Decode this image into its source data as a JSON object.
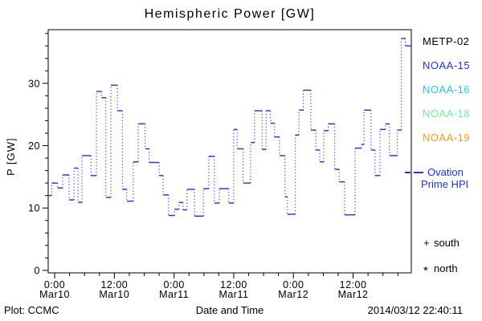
{
  "title": "Hemispheric Power [GW]",
  "legend": {
    "satellites": [
      {
        "label": "METP-02",
        "color": "#000000"
      },
      {
        "label": "NOAA-15",
        "color": "#2233cc"
      },
      {
        "label": "NOAA-16",
        "color": "#33bbee"
      },
      {
        "label": "NOAA-18",
        "color": "#7ce696"
      },
      {
        "label": "NOAA-19",
        "color": "#ee9922"
      }
    ],
    "line_sample": {
      "label_line1": "Ovation",
      "label_line2": "Prime HPI",
      "color": "#2233cc"
    },
    "markers": [
      {
        "symbol": "+",
        "label": "south"
      },
      {
        "symbol": "*",
        "label": "north"
      }
    ]
  },
  "footer": {
    "left": "Plot: CCMC",
    "right": "2014/03/12 22:40:11"
  },
  "chart_data": {
    "type": "line",
    "style": "step plot: solid horizontal segments joined by dotted vertical connectors",
    "series_name": "Ovation Prime HPI",
    "line_color": "#2233cc",
    "title": "Hemispheric Power [GW]",
    "xlabel": "Date and Time",
    "ylabel": "P [GW]",
    "xlim_hours_from_mar10": [
      -1.3,
      71.7
    ],
    "ylim": [
      -0.4,
      38.6
    ],
    "y_major_ticks": [
      0,
      10,
      20,
      30
    ],
    "y_minor_step": 2,
    "x_major_ticks": [
      {
        "t": 0,
        "time": "0:00",
        "date": "Mar10"
      },
      {
        "t": 12,
        "time": "12:00",
        "date": "Mar10"
      },
      {
        "t": 24,
        "time": "0:00",
        "date": "Mar11"
      },
      {
        "t": 36,
        "time": "12:00",
        "date": "Mar11"
      },
      {
        "t": 48,
        "time": "0:00",
        "date": "Mar12"
      },
      {
        "t": 60,
        "time": "12:00",
        "date": "Mar12"
      }
    ],
    "x_minor_step_hours": 3,
    "t_end": 71.7,
    "points": [
      [
        -1.3,
        12.0
      ],
      [
        -0.6,
        14.0
      ],
      [
        0.6,
        13.2
      ],
      [
        1.6,
        15.3
      ],
      [
        2.9,
        11.3
      ],
      [
        3.9,
        16.4
      ],
      [
        4.7,
        10.9
      ],
      [
        5.5,
        18.4
      ],
      [
        7.3,
        15.2
      ],
      [
        8.4,
        28.7
      ],
      [
        9.4,
        27.7
      ],
      [
        10.3,
        11.7
      ],
      [
        11.3,
        29.7
      ],
      [
        12.6,
        25.6
      ],
      [
        13.6,
        13.0
      ],
      [
        14.5,
        11.1
      ],
      [
        15.8,
        17.4
      ],
      [
        16.8,
        23.5
      ],
      [
        18.2,
        19.5
      ],
      [
        19.0,
        17.3
      ],
      [
        21.0,
        15.2
      ],
      [
        21.8,
        12.1
      ],
      [
        22.9,
        8.8
      ],
      [
        24.1,
        9.8
      ],
      [
        25.0,
        10.9
      ],
      [
        25.8,
        9.7
      ],
      [
        26.6,
        13.0
      ],
      [
        28.1,
        8.7
      ],
      [
        29.9,
        13.1
      ],
      [
        31.0,
        18.3
      ],
      [
        32.1,
        10.8
      ],
      [
        33.1,
        13.1
      ],
      [
        35.0,
        10.8
      ],
      [
        36.0,
        22.6
      ],
      [
        36.7,
        19.5
      ],
      [
        37.9,
        14.0
      ],
      [
        39.4,
        20.5
      ],
      [
        40.2,
        25.6
      ],
      [
        41.7,
        19.4
      ],
      [
        42.5,
        25.6
      ],
      [
        43.4,
        23.6
      ],
      [
        44.2,
        21.4
      ],
      [
        45.2,
        18.4
      ],
      [
        46.3,
        11.8
      ],
      [
        46.8,
        9.0
      ],
      [
        48.4,
        21.7
      ],
      [
        49.1,
        25.7
      ],
      [
        50.0,
        28.9
      ],
      [
        51.5,
        22.5
      ],
      [
        52.5,
        19.3
      ],
      [
        53.3,
        17.4
      ],
      [
        54.1,
        22.4
      ],
      [
        55.0,
        23.5
      ],
      [
        56.3,
        16.2
      ],
      [
        57.2,
        14.2
      ],
      [
        58.3,
        8.9
      ],
      [
        60.4,
        19.6
      ],
      [
        61.7,
        20.2
      ],
      [
        62.2,
        25.7
      ],
      [
        63.6,
        19.3
      ],
      [
        64.4,
        15.2
      ],
      [
        65.4,
        22.6
      ],
      [
        66.5,
        23.5
      ],
      [
        67.3,
        18.4
      ],
      [
        68.9,
        22.5
      ],
      [
        69.7,
        37.2
      ],
      [
        70.5,
        36.0
      ]
    ]
  }
}
